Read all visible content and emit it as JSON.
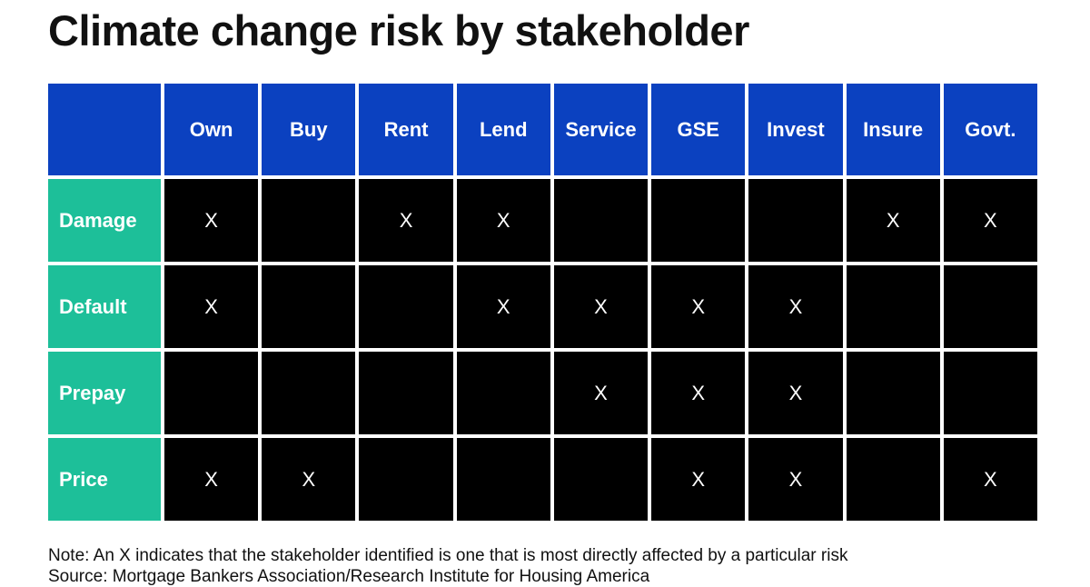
{
  "header": {
    "title": "Climate change risk by stakeholder"
  },
  "table": {
    "columns": [
      "Own",
      "Buy",
      "Rent",
      "Lend",
      "Service",
      "GSE",
      "Invest",
      "Insure",
      "Govt."
    ],
    "rows": [
      {
        "label": "Damage",
        "cells": [
          "X",
          null,
          "X",
          "X",
          null,
          null,
          null,
          "X",
          "X"
        ]
      },
      {
        "label": "Default",
        "cells": [
          "X",
          null,
          null,
          "X",
          "X",
          "X",
          "X",
          null,
          null
        ]
      },
      {
        "label": "Prepay",
        "cells": [
          null,
          null,
          null,
          null,
          "X",
          "X",
          "X",
          null,
          null
        ]
      },
      {
        "label": "Price",
        "cells": [
          "X",
          "X",
          null,
          null,
          null,
          "X",
          "X",
          null,
          "X"
        ]
      }
    ]
  },
  "footer": {
    "note": "Note: An X indicates that the stakeholder identified is one that is most directly affected by a particular risk",
    "source": "Source: Mortgage Bankers Association/Research Institute for Housing America"
  }
}
